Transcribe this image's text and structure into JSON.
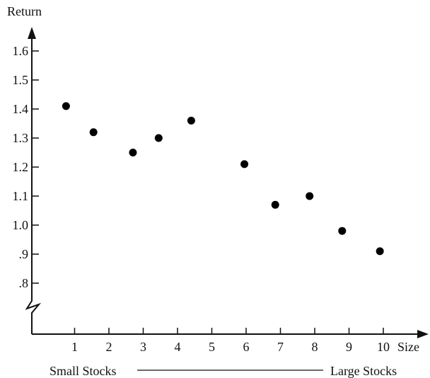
{
  "chart_data": {
    "type": "scatter",
    "title": "",
    "xlabel": "Size",
    "ylabel": "Return",
    "x_ticks": [
      "1",
      "2",
      "3",
      "4",
      "5",
      "6",
      "7",
      "8",
      "9",
      "10"
    ],
    "y_ticks": [
      ".8",
      ".9",
      "1.0",
      "1.1",
      "1.2",
      "1.3",
      "1.4",
      "1.5",
      "1.6"
    ],
    "ylim": [
      0.7,
      1.7
    ],
    "xlim": [
      0,
      11
    ],
    "axis_break_on_y": true,
    "grid": false,
    "points": [
      {
        "x": 0.75,
        "y": 1.41
      },
      {
        "x": 1.55,
        "y": 1.32
      },
      {
        "x": 2.7,
        "y": 1.25
      },
      {
        "x": 3.45,
        "y": 1.3
      },
      {
        "x": 4.4,
        "y": 1.36
      },
      {
        "x": 5.95,
        "y": 1.21
      },
      {
        "x": 6.85,
        "y": 1.07
      },
      {
        "x": 7.85,
        "y": 1.1
      },
      {
        "x": 8.8,
        "y": 0.98
      },
      {
        "x": 9.9,
        "y": 0.91
      }
    ],
    "range_caption": {
      "left": "Small Stocks",
      "right": "Large Stocks"
    }
  }
}
